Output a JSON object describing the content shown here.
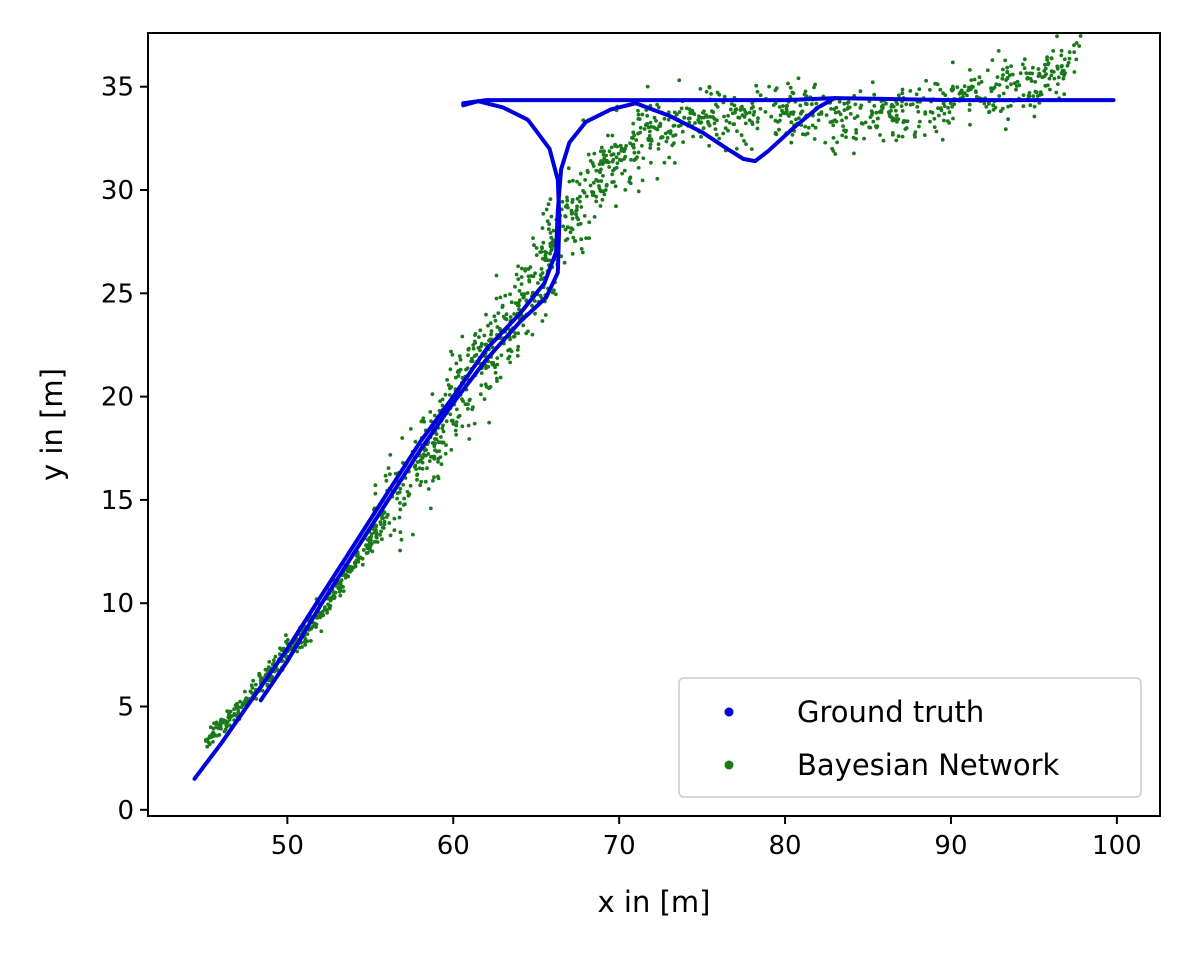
{
  "chart_data": {
    "type": "scatter",
    "title": "",
    "xlabel": "x in [m]",
    "ylabel": "y in [m]",
    "xlim": [
      41.6,
      102.6
    ],
    "ylim": [
      -0.3,
      37.6
    ],
    "x_ticks": [
      50,
      60,
      70,
      80,
      90,
      100
    ],
    "y_ticks": [
      0,
      5,
      10,
      15,
      20,
      25,
      30,
      35
    ],
    "grid": false,
    "legend_position": "lower-right",
    "series": [
      {
        "name": "Ground truth",
        "color": "#0000dd",
        "style": "dense-points-forming-line",
        "segments": [
          [
            [
              44.4,
              1.5
            ],
            [
              46.0,
              3.2
            ],
            [
              48.0,
              5.5
            ],
            [
              50.0,
              7.8
            ],
            [
              52.0,
              10.3
            ],
            [
              54.0,
              12.8
            ],
            [
              56.0,
              15.3
            ],
            [
              58.0,
              17.8
            ],
            [
              60.0,
              20.0
            ],
            [
              62.0,
              22.3
            ],
            [
              64.0,
              24.0
            ],
            [
              65.5,
              25.5
            ],
            [
              66.2,
              27.0
            ],
            [
              66.3,
              29.0
            ],
            [
              66.5,
              31.0
            ],
            [
              67.0,
              32.3
            ],
            [
              68.0,
              33.3
            ],
            [
              69.5,
              33.9
            ],
            [
              71.0,
              34.2
            ]
          ],
          [
            [
              48.4,
              5.3
            ],
            [
              50.0,
              7.2
            ],
            [
              52.0,
              9.9
            ],
            [
              54.0,
              12.4
            ],
            [
              56.0,
              14.9
            ],
            [
              58.0,
              17.4
            ],
            [
              60.0,
              19.7
            ],
            [
              62.0,
              21.8
            ],
            [
              64.0,
              23.6
            ],
            [
              65.6,
              24.8
            ],
            [
              66.3,
              26.0
            ],
            [
              66.4,
              28.5
            ],
            [
              66.3,
              30.5
            ],
            [
              65.8,
              32.0
            ],
            [
              64.5,
              33.4
            ],
            [
              63.0,
              34.0
            ],
            [
              61.5,
              34.3
            ],
            [
              60.6,
              34.1
            ]
          ],
          [
            [
              60.6,
              34.2
            ],
            [
              62.0,
              34.35
            ],
            [
              70.0,
              34.35
            ],
            [
              80.0,
              34.35
            ],
            [
              83.0,
              34.45
            ],
            [
              90.0,
              34.35
            ],
            [
              99.8,
              34.35
            ]
          ],
          [
            [
              71.0,
              34.2
            ],
            [
              73.0,
              33.6
            ],
            [
              75.0,
              32.8
            ],
            [
              76.5,
              32.0
            ],
            [
              77.5,
              31.5
            ],
            [
              78.2,
              31.4
            ],
            [
              79.0,
              31.9
            ],
            [
              80.5,
              33.0
            ],
            [
              82.0,
              34.0
            ],
            [
              83.0,
              34.45
            ]
          ]
        ]
      },
      {
        "name": "Bayesian Network",
        "color": "#1a7a1a",
        "style": "scattered-points",
        "path": [
          [
            45.0,
            3.3
          ],
          [
            47.0,
            4.9
          ],
          [
            49.0,
            6.6
          ],
          [
            51.0,
            8.5
          ],
          [
            53.0,
            10.7
          ],
          [
            55.0,
            13.0
          ],
          [
            57.0,
            15.5
          ],
          [
            58.5,
            17.8
          ],
          [
            60.0,
            19.8
          ],
          [
            61.5,
            21.5
          ],
          [
            63.0,
            23.0
          ],
          [
            64.5,
            25.0
          ],
          [
            66.0,
            27.3
          ],
          [
            67.5,
            29.5
          ],
          [
            69.5,
            31.2
          ],
          [
            71.5,
            32.5
          ],
          [
            74.0,
            33.3
          ],
          [
            77.0,
            33.6
          ],
          [
            80.0,
            33.7
          ],
          [
            83.0,
            33.6
          ],
          [
            86.0,
            33.6
          ],
          [
            89.0,
            34.2
          ],
          [
            92.0,
            34.7
          ],
          [
            95.0,
            35.3
          ],
          [
            97.5,
            36.1
          ]
        ]
      }
    ]
  }
}
